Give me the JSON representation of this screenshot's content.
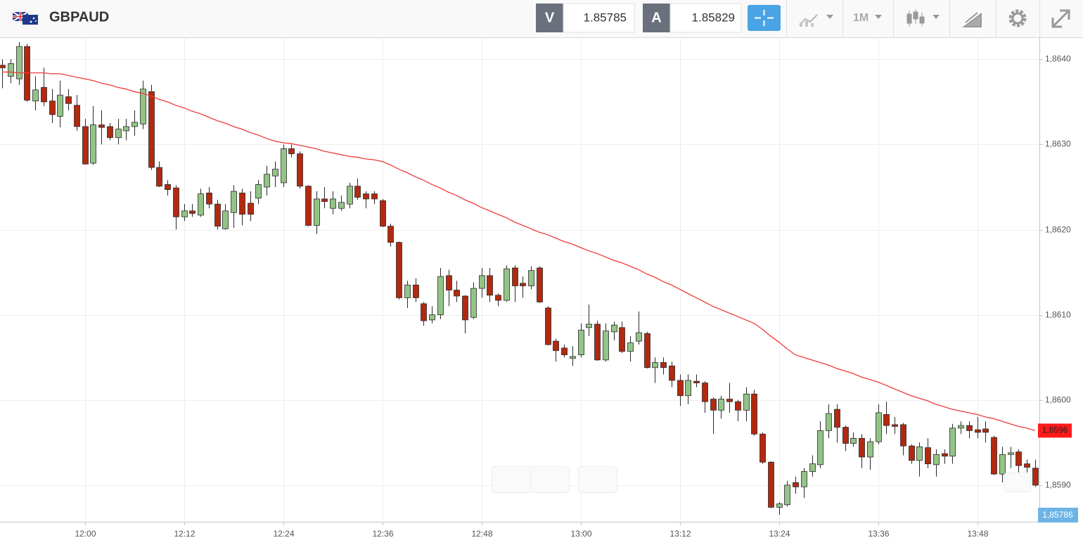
{
  "toolbar": {
    "symbol": "GBPAUD",
    "bid_label": "V",
    "bid": 1.85785,
    "ask_label": "A",
    "ask": 1.85829,
    "timeframe": "1M"
  },
  "chart_data": {
    "type": "candlestick",
    "categories": [
      null,
      null,
      null,
      null,
      null,
      null,
      null,
      null,
      null,
      null,
      "12:00",
      null,
      null,
      null,
      null,
      null,
      null,
      null,
      null,
      null,
      null,
      null,
      "12:12",
      null,
      null,
      null,
      null,
      null,
      null,
      null,
      null,
      null,
      null,
      null,
      "12:24",
      null,
      null,
      null,
      null,
      null,
      null,
      null,
      null,
      null,
      null,
      null,
      "12:36",
      null,
      null,
      null,
      null,
      null,
      null,
      null,
      null,
      null,
      null,
      null,
      "12:48",
      null,
      null,
      null,
      null,
      null,
      null,
      null,
      null,
      null,
      null,
      null,
      "13:00",
      null,
      null,
      null,
      null,
      null,
      null,
      null,
      null,
      null,
      null,
      null,
      "13:12",
      null,
      null,
      null,
      null,
      null,
      null,
      null,
      null,
      null,
      null,
      null,
      "13:24",
      null,
      null,
      null,
      null,
      null,
      null,
      null,
      null,
      null,
      null,
      null,
      "13:36",
      null,
      null,
      null,
      null,
      null,
      null,
      null,
      null,
      null,
      null,
      null,
      "13:48",
      null,
      null,
      null,
      null,
      null,
      null,
      null
    ],
    "open": [
      1.86393,
      1.8638,
      1.86377,
      1.86415,
      1.86351,
      1.86367,
      1.86351,
      1.86333,
      1.86356,
      1.86346,
      1.86321,
      1.86278,
      1.86323,
      1.86321,
      1.86308,
      1.86316,
      1.86321,
      1.86324,
      1.86362,
      1.86273,
      1.86253,
      1.86249,
      1.86215,
      1.86222,
      1.86217,
      1.86243,
      1.8623,
      1.86201,
      1.8622,
      1.86243,
      1.86231,
      1.86237,
      1.8625,
      1.86263,
      1.86255,
      1.86295,
      1.86289,
      1.86251,
      1.86205,
      1.86236,
      1.86225,
      1.86225,
      1.8623,
      1.86251,
      1.86242,
      1.86242,
      1.86234,
      1.86204,
      1.86185,
      1.8612,
      1.86135,
      1.86113,
      1.86094,
      1.861,
      1.86146,
      1.86129,
      1.86122,
      1.86097,
      1.86131,
      1.86146,
      1.86123,
      1.86117,
      1.86155,
      1.86137,
      1.86134,
      1.86155,
      1.86108,
      1.86069,
      1.86061,
      1.86049,
      1.86053,
      1.86085,
      1.86089,
      1.86047,
      1.8608,
      1.86085,
      1.86057,
      1.86069,
      1.86078,
      1.86038,
      1.86044,
      1.8604,
      1.86023,
      1.86005,
      1.86022,
      1.8602,
      1.86001,
      1.85988,
      1.86001,
      1.85998,
      1.85988,
      1.86007,
      1.8596,
      1.85927,
      1.85874,
      1.85877,
      1.85903,
      1.85898,
      1.85916,
      1.85924,
      1.85964,
      1.85989,
      1.85968,
      1.85949,
      1.85955,
      1.85933,
      1.85951,
      1.85983,
      1.85971,
      1.85971,
      1.85946,
      1.85929,
      1.85944,
      1.85924,
      1.85937,
      1.85934,
      1.85967,
      1.8597,
      1.85965,
      1.85966,
      1.85956,
      1.85913,
      1.85936,
      1.85939,
      1.85925,
      1.8592
    ],
    "high": [
      1.864,
      1.864,
      1.8642,
      1.86418,
      1.8638,
      1.8639,
      1.86365,
      1.86375,
      1.86365,
      1.86358,
      1.8633,
      1.86345,
      1.8634,
      1.86325,
      1.8633,
      1.8633,
      1.8634,
      1.86375,
      1.8637,
      1.8628,
      1.86258,
      1.86252,
      1.8623,
      1.8623,
      1.86248,
      1.8625,
      1.86235,
      1.8623,
      1.86252,
      1.86248,
      1.86245,
      1.86258,
      1.86275,
      1.8628,
      1.863,
      1.863,
      1.86292,
      1.86252,
      1.86245,
      1.8625,
      1.86245,
      1.8624,
      1.86255,
      1.8626,
      1.86245,
      1.86245,
      1.86236,
      1.86207,
      1.86186,
      1.8614,
      1.86143,
      1.86115,
      1.8611,
      1.86155,
      1.86153,
      1.8614,
      1.86123,
      1.86138,
      1.86155,
      1.86155,
      1.86125,
      1.86158,
      1.86158,
      1.86145,
      1.86157,
      1.86157,
      1.8611,
      1.86072,
      1.86065,
      1.86063,
      1.8609,
      1.86112,
      1.86093,
      1.8609,
      1.86092,
      1.86092,
      1.86075,
      1.86104,
      1.8608,
      1.8605,
      1.8605,
      1.86045,
      1.8603,
      1.8603,
      1.8603,
      1.86022,
      1.86003,
      1.86005,
      1.8602,
      1.86,
      1.86015,
      1.86012,
      1.85962,
      1.85928,
      1.8588,
      1.85905,
      1.8591,
      1.8592,
      1.85935,
      1.85975,
      1.85995,
      1.85995,
      1.8597,
      1.85962,
      1.8596,
      1.85955,
      1.85995,
      1.85998,
      1.8598,
      1.85973,
      1.85948,
      1.8595,
      1.85955,
      1.85942,
      1.85942,
      1.85972,
      1.85975,
      1.85975,
      1.8598,
      1.85975,
      1.85958,
      1.85945,
      1.85945,
      1.85942,
      1.8593,
      1.8593
    ],
    "low": [
      1.86366,
      1.86372,
      1.8637,
      1.8635,
      1.8634,
      1.86345,
      1.86325,
      1.8632,
      1.8634,
      1.86316,
      1.86277,
      1.86276,
      1.863,
      1.86305,
      1.863,
      1.86305,
      1.8631,
      1.86318,
      1.8627,
      1.8625,
      1.8624,
      1.862,
      1.8621,
      1.86215,
      1.86215,
      1.86225,
      1.862,
      1.862,
      1.86202,
      1.86205,
      1.8621,
      1.8623,
      1.8624,
      1.8625,
      1.8625,
      1.86285,
      1.86248,
      1.86204,
      1.86195,
      1.86225,
      1.86218,
      1.86222,
      1.86225,
      1.86235,
      1.86225,
      1.8623,
      1.86203,
      1.8618,
      1.86118,
      1.86108,
      1.86115,
      1.86087,
      1.8609,
      1.86095,
      1.8611,
      1.86115,
      1.86078,
      1.86095,
      1.8612,
      1.86115,
      1.8611,
      1.86115,
      1.86115,
      1.8612,
      1.8613,
      1.86114,
      1.86064,
      1.86045,
      1.8605,
      1.8604,
      1.8605,
      1.86075,
      1.86046,
      1.86045,
      1.8607,
      1.86055,
      1.86045,
      1.86065,
      1.86037,
      1.8602,
      1.8603,
      1.86015,
      1.85993,
      1.85995,
      1.86015,
      1.85985,
      1.8596,
      1.85978,
      1.85985,
      1.85975,
      1.85975,
      1.85958,
      1.85925,
      1.85873,
      1.85865,
      1.85875,
      1.8589,
      1.85885,
      1.8591,
      1.8592,
      1.85955,
      1.8595,
      1.8594,
      1.85945,
      1.8592,
      1.85918,
      1.85948,
      1.8596,
      1.8596,
      1.85935,
      1.85925,
      1.8591,
      1.8592,
      1.8591,
      1.85925,
      1.85925,
      1.8596,
      1.85955,
      1.85955,
      1.8595,
      1.85912,
      1.85903,
      1.8592,
      1.85915,
      1.85915,
      1.85898
    ],
    "close": [
      1.8639,
      1.86395,
      1.86415,
      1.86352,
      1.86364,
      1.8635,
      1.86335,
      1.86358,
      1.86348,
      1.86321,
      1.86277,
      1.86323,
      1.8632,
      1.86308,
      1.86318,
      1.86321,
      1.86326,
      1.86365,
      1.86273,
      1.86251,
      1.86247,
      1.86215,
      1.86222,
      1.86219,
      1.86242,
      1.8623,
      1.86204,
      1.86222,
      1.86245,
      1.86218,
      1.86218,
      1.86253,
      1.86265,
      1.86271,
      1.86295,
      1.86289,
      1.86251,
      1.86205,
      1.86236,
      1.86233,
      1.86236,
      1.86232,
      1.86251,
      1.86238,
      1.86236,
      1.86236,
      1.86204,
      1.86185,
      1.8612,
      1.86135,
      1.8612,
      1.86093,
      1.861,
      1.86145,
      1.86129,
      1.86122,
      1.86094,
      1.86131,
      1.86146,
      1.86123,
      1.86117,
      1.86154,
      1.86134,
      1.86134,
      1.86152,
      1.86115,
      1.86065,
      1.86058,
      1.86053,
      1.86051,
      1.86082,
      1.86089,
      1.86047,
      1.86081,
      1.86088,
      1.86057,
      1.86067,
      1.86079,
      1.86038,
      1.86044,
      1.86038,
      1.86023,
      1.86005,
      1.86023,
      1.8602,
      1.85998,
      1.85988,
      1.86001,
      1.85998,
      1.85988,
      1.86007,
      1.8596,
      1.85927,
      1.85874,
      1.85878,
      1.859,
      1.85898,
      1.85916,
      1.85925,
      1.85964,
      1.85984,
      1.85968,
      1.85949,
      1.85955,
      1.85933,
      1.85951,
      1.85985,
      1.8597,
      1.85969,
      1.85946,
      1.85929,
      1.85945,
      1.85925,
      1.85936,
      1.85934,
      1.85967,
      1.8597,
      1.85964,
      1.85962,
      1.85962,
      1.85913,
      1.85936,
      1.85938,
      1.85923,
      1.85921,
      1.859
    ],
    "up_color": "#93c486",
    "down_color": "#b3290f",
    "ma": {
      "color": "#f03a3a",
      "values": [
        1.86385,
        1.86385,
        1.86384,
        1.86384,
        1.86384,
        1.86384,
        1.86383,
        1.86383,
        1.86381,
        1.86379,
        1.86377,
        1.86375,
        1.86372,
        1.8637,
        1.86367,
        1.86365,
        1.86362,
        1.8636,
        1.86357,
        1.86353,
        1.8635,
        1.86346,
        1.86343,
        1.86339,
        1.86336,
        1.86332,
        1.86328,
        1.86325,
        1.86321,
        1.86318,
        1.86314,
        1.86311,
        1.86307,
        1.86304,
        1.86302,
        1.86301,
        1.86299,
        1.86297,
        1.86295,
        1.86292,
        1.8629,
        1.86288,
        1.86286,
        1.86285,
        1.86283,
        1.86282,
        1.8628,
        1.86276,
        1.86271,
        1.86267,
        1.86262,
        1.86258,
        1.86253,
        1.86249,
        1.86244,
        1.8624,
        1.86235,
        1.86231,
        1.86226,
        1.86222,
        1.86218,
        1.86214,
        1.86209,
        1.86205,
        1.86201,
        1.86197,
        1.86194,
        1.8619,
        1.86186,
        1.86183,
        1.86179,
        1.86175,
        1.86172,
        1.86168,
        1.86164,
        1.86161,
        1.86157,
        1.86153,
        1.86148,
        1.86144,
        1.86139,
        1.86135,
        1.8613,
        1.86125,
        1.8612,
        1.86115,
        1.8611,
        1.86106,
        1.86102,
        1.86098,
        1.86094,
        1.8609,
        1.86083,
        1.86075,
        1.86068,
        1.8606,
        1.86053,
        1.8605,
        1.86047,
        1.86044,
        1.86041,
        1.86037,
        1.86034,
        1.86031,
        1.86027,
        1.86024,
        1.86021,
        1.86017,
        1.86013,
        1.86009,
        1.86005,
        1.86002,
        1.85999,
        1.85995,
        1.85992,
        1.85989,
        1.85987,
        1.85985,
        1.85983,
        1.8598,
        1.85978,
        1.85975,
        1.85972,
        1.85969,
        1.85967,
        1.85964
      ],
      "last_label": {
        "value": 1.85964,
        "label": "1,8596"
      }
    },
    "price_tag": "1,85786",
    "ylim": [
      1.85857,
      1.86425
    ],
    "yticks": [
      {
        "value": 1.864,
        "label": "1,8640"
      },
      {
        "value": 1.863,
        "label": "1,8630"
      },
      {
        "value": 1.862,
        "label": "1,8620"
      },
      {
        "value": 1.861,
        "label": "1,8610"
      },
      {
        "value": 1.86,
        "label": "1,8600"
      },
      {
        "value": 1.859,
        "label": "1,8590"
      }
    ],
    "grid": true
  }
}
